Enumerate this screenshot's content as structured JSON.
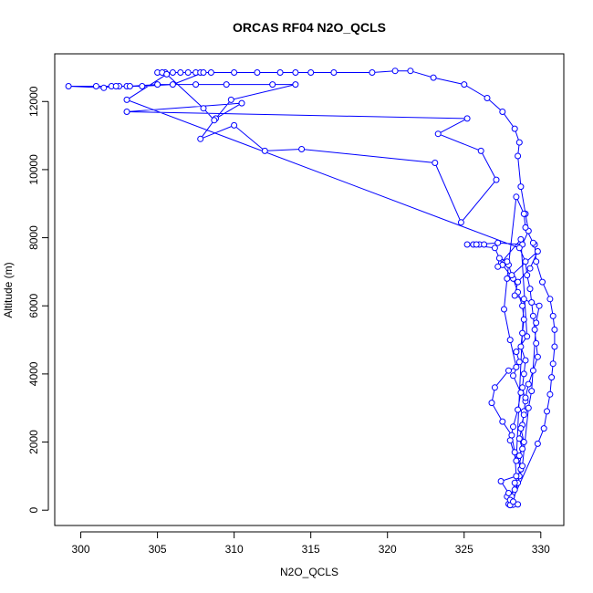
{
  "chart_data": {
    "type": "scatter",
    "title": "ORCAS RF04 N2O_QCLS",
    "xlabel": "N2O_QCLS",
    "ylabel": "Altitude (m)",
    "xlim": [
      298.3,
      331.5
    ],
    "ylim": [
      -450,
      13400
    ],
    "x_ticks": [
      300,
      305,
      310,
      315,
      320,
      325,
      330
    ],
    "y_ticks": [
      0,
      2000,
      4000,
      6000,
      8000,
      10000,
      12000
    ],
    "color": "#0000ff",
    "marker": "open-circle",
    "series": [
      {
        "name": "",
        "points": [
          [
            328.0,
            150
          ],
          [
            328.2,
            160
          ],
          [
            328.5,
            170
          ],
          [
            328.0,
            200
          ],
          [
            327.8,
            400
          ],
          [
            328.3,
            600
          ],
          [
            328.5,
            800
          ],
          [
            328.6,
            1000
          ],
          [
            328.7,
            1200
          ],
          [
            328.5,
            1500
          ],
          [
            328.8,
            1800
          ],
          [
            328.6,
            2100
          ],
          [
            328.8,
            2500
          ],
          [
            328.9,
            2900
          ],
          [
            329.0,
            3200
          ],
          [
            328.8,
            3600
          ],
          [
            328.9,
            4000
          ],
          [
            329.0,
            4400
          ],
          [
            328.7,
            4800
          ],
          [
            328.8,
            5200
          ],
          [
            328.9,
            5600
          ],
          [
            328.8,
            6000
          ],
          [
            328.5,
            6400
          ],
          [
            328.2,
            6800
          ],
          [
            327.5,
            7200
          ],
          [
            327.0,
            7700
          ],
          [
            325.2,
            7800
          ],
          [
            325.6,
            7800
          ],
          [
            326.0,
            7800
          ],
          [
            326.3,
            7800
          ],
          [
            325.8,
            7800
          ],
          [
            327.2,
            7850
          ],
          [
            328.8,
            7800
          ],
          [
            329.2,
            8200
          ],
          [
            329.0,
            8700
          ],
          [
            328.7,
            9500
          ],
          [
            328.5,
            10400
          ],
          [
            328.6,
            10800
          ],
          [
            328.3,
            11200
          ],
          [
            327.5,
            11700
          ],
          [
            326.5,
            12100
          ],
          [
            325.0,
            12500
          ],
          [
            323.0,
            12700
          ],
          [
            321.5,
            12900
          ],
          [
            320.5,
            12900
          ],
          [
            319.0,
            12850
          ],
          [
            316.5,
            12850
          ],
          [
            315.0,
            12850
          ],
          [
            314.0,
            12850
          ],
          [
            313.0,
            12850
          ],
          [
            311.5,
            12850
          ],
          [
            310.0,
            12850
          ],
          [
            308.5,
            12850
          ],
          [
            307.5,
            12850
          ],
          [
            306.5,
            12850
          ],
          [
            305.5,
            12850
          ],
          [
            305.0,
            12850
          ],
          [
            305.3,
            12850
          ],
          [
            306.0,
            12850
          ],
          [
            307.0,
            12850
          ],
          [
            307.8,
            12850
          ],
          [
            308.0,
            12850
          ],
          [
            306.0,
            12500
          ],
          [
            304.0,
            12450
          ],
          [
            303.0,
            12450
          ],
          [
            302.5,
            12450
          ],
          [
            302.0,
            12450
          ],
          [
            301.5,
            12400
          ],
          [
            299.2,
            12450
          ],
          [
            301.0,
            12450
          ],
          [
            302.3,
            12450
          ],
          [
            303.2,
            12450
          ],
          [
            305.0,
            12500
          ],
          [
            307.5,
            12500
          ],
          [
            309.5,
            12500
          ],
          [
            312.5,
            12500
          ],
          [
            314.0,
            12500
          ],
          [
            309.8,
            12050
          ],
          [
            308.8,
            11500
          ],
          [
            310.5,
            11950
          ],
          [
            303.0,
            11700
          ],
          [
            325.2,
            11500
          ],
          [
            323.3,
            11050
          ],
          [
            326.1,
            10550
          ],
          [
            327.1,
            9700
          ],
          [
            324.8,
            8450
          ],
          [
            323.1,
            10200
          ],
          [
            314.4,
            10600
          ],
          [
            312.0,
            10550
          ],
          [
            310.0,
            11300
          ],
          [
            307.8,
            10900
          ],
          [
            308.7,
            11450
          ],
          [
            308.0,
            11800
          ],
          [
            305.6,
            12800
          ],
          [
            303.0,
            12050
          ],
          [
            328.6,
            7700
          ],
          [
            329.0,
            7300
          ],
          [
            329.1,
            6900
          ],
          [
            329.3,
            6500
          ],
          [
            329.4,
            6100
          ],
          [
            329.5,
            5700
          ],
          [
            329.6,
            5300
          ],
          [
            329.7,
            4900
          ],
          [
            329.8,
            4500
          ],
          [
            329.5,
            4100
          ],
          [
            329.2,
            3700
          ],
          [
            329.0,
            3300
          ],
          [
            328.9,
            2800
          ],
          [
            328.7,
            2400
          ],
          [
            328.9,
            2000
          ],
          [
            328.6,
            1600
          ],
          [
            328.7,
            1200
          ],
          [
            328.3,
            800
          ],
          [
            328.1,
            400
          ],
          [
            327.9,
            180
          ],
          [
            328.0,
            150
          ],
          [
            329.8,
            1950
          ],
          [
            330.2,
            2400
          ],
          [
            330.4,
            2900
          ],
          [
            330.6,
            3400
          ],
          [
            330.7,
            3900
          ],
          [
            330.8,
            4300
          ],
          [
            330.9,
            4800
          ],
          [
            330.9,
            5300
          ],
          [
            330.8,
            5700
          ],
          [
            330.6,
            6200
          ],
          [
            330.1,
            6700
          ],
          [
            329.7,
            7300
          ],
          [
            329.6,
            7800
          ],
          [
            329.5,
            7850
          ],
          [
            329.0,
            8300
          ],
          [
            328.9,
            8700
          ],
          [
            328.4,
            9200
          ],
          [
            327.8,
            6800
          ],
          [
            327.6,
            5900
          ],
          [
            328.0,
            5000
          ],
          [
            328.4,
            4200
          ],
          [
            327.9,
            4100
          ],
          [
            327.0,
            3600
          ],
          [
            326.8,
            3150
          ],
          [
            327.5,
            2600
          ],
          [
            328.1,
            2200
          ],
          [
            328.3,
            1700
          ],
          [
            328.4,
            1000
          ],
          [
            327.4,
            850
          ],
          [
            327.9,
            500
          ],
          [
            328.0,
            300
          ],
          [
            328.2,
            250
          ],
          [
            328.8,
            1300
          ],
          [
            329.2,
            3000
          ],
          [
            329.4,
            3500
          ],
          [
            329.7,
            5500
          ],
          [
            329.9,
            6000
          ],
          [
            328.3,
            6300
          ],
          [
            328.5,
            6700
          ],
          [
            329.3,
            7100
          ],
          [
            329.8,
            7600
          ],
          [
            328.1,
            6900
          ],
          [
            327.9,
            7200
          ],
          [
            327.8,
            7300
          ],
          [
            327.3,
            7400
          ],
          [
            327.2,
            7150
          ],
          [
            328.7,
            7950
          ],
          [
            329.1,
            5100
          ],
          [
            328.4,
            4650
          ],
          [
            328.6,
            4350
          ],
          [
            328.2,
            3950
          ],
          [
            328.7,
            3450
          ],
          [
            328.5,
            2950
          ],
          [
            328.2,
            2450
          ],
          [
            328.0,
            2050
          ],
          [
            328.4,
            1450
          ],
          [
            328.9,
            6200
          ]
        ]
      }
    ]
  }
}
